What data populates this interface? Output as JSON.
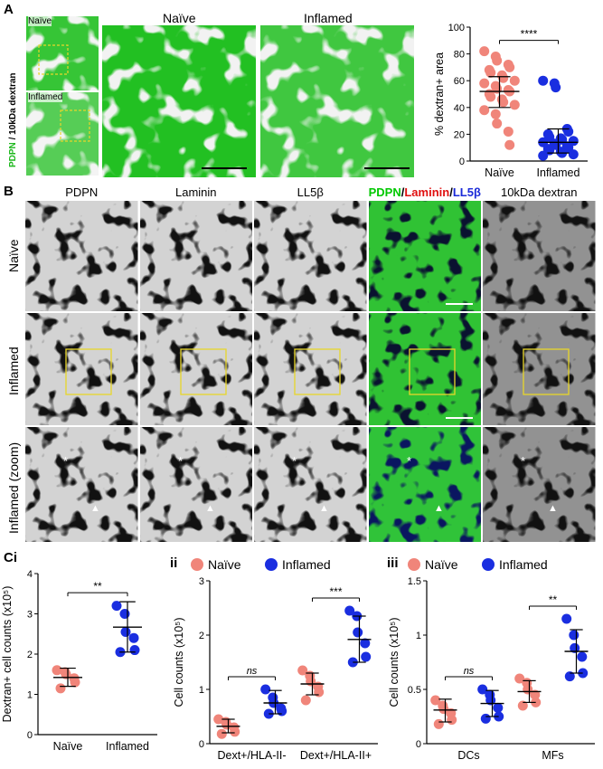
{
  "panels": {
    "a_letter": "A",
    "b_letter": "B",
    "ci_letter": "Ci",
    "ii_letter": "ii",
    "iii_letter": "iii"
  },
  "panel_a": {
    "thumb_top_label": "Naïve",
    "thumb_bottom_label": "Inflamed",
    "thumb_side_label_pdpn": "PDPN",
    "thumb_side_label_rest": " / 10kDa dextran",
    "image_naive_title": "Naïve",
    "image_inflamed_title": "Inflamed"
  },
  "panel_b": {
    "columns": [
      "PDPN",
      "Laminin",
      "LL5β",
      "",
      "10kDa dextran"
    ],
    "merge_parts": [
      {
        "text": "PDPN",
        "color": "#00c800"
      },
      {
        "text": "/",
        "color": "#000000"
      },
      {
        "text": "Laminin",
        "color": "#e01010"
      },
      {
        "text": "/",
        "color": "#000000"
      },
      {
        "text": "LL5β",
        "color": "#1a2ad8"
      }
    ],
    "rows": [
      "Naïve",
      "Inflamed",
      "Inflamed (zoom)"
    ]
  },
  "colors": {
    "naive": "#f0857a",
    "inflamed": "#1a2ee0",
    "pdpn_green": "#22c022",
    "box_yellow": "#e8d62a"
  },
  "chart_data": [
    {
      "id": "A",
      "type": "scatter",
      "ylabel": "% dextran+ area",
      "categories": [
        "Naïve",
        "Inflamed"
      ],
      "ylim": [
        0,
        100
      ],
      "yticks": [
        0,
        20,
        40,
        60,
        80,
        100
      ],
      "significance": [
        "****"
      ],
      "series": [
        {
          "name": "Naïve",
          "mean": 52,
          "sd_low": 40,
          "sd_high": 63,
          "values": [
            82,
            78,
            75,
            72,
            70,
            68,
            66,
            64,
            62,
            60,
            58,
            56,
            54,
            53,
            52,
            50,
            48,
            46,
            44,
            42,
            38,
            35,
            28,
            22,
            12
          ]
        },
        {
          "name": "Inflamed",
          "mean": 14,
          "sd_low": 6,
          "sd_high": 24,
          "values": [
            60,
            58,
            55,
            24,
            22,
            20,
            18,
            17,
            16,
            15,
            14,
            13,
            12,
            11,
            10,
            9,
            8,
            7,
            6,
            5,
            4
          ]
        }
      ]
    },
    {
      "id": "Ci",
      "type": "scatter",
      "ylabel": "Dextran+ cell counts (x10⁵)",
      "categories": [
        "Naïve",
        "Inflamed"
      ],
      "ylim": [
        0,
        4
      ],
      "yticks": [
        0,
        1,
        2,
        3,
        4
      ],
      "significance": [
        "**"
      ],
      "series": [
        {
          "name": "Naïve",
          "mean": 1.42,
          "sd_low": 1.2,
          "sd_high": 1.65,
          "values": [
            1.6,
            1.55,
            1.5,
            1.4,
            1.3,
            1.15
          ]
        },
        {
          "name": "Inflamed",
          "mean": 2.67,
          "sd_low": 2.05,
          "sd_high": 3.3,
          "values": [
            3.2,
            3.0,
            2.55,
            2.4,
            2.1,
            2.05
          ]
        }
      ]
    },
    {
      "id": "ii",
      "type": "scatter",
      "ylabel": "Cell counts (x10⁵)",
      "categories": [
        "Dext+/HLA-II-",
        "Dext+/HLA-II+"
      ],
      "legend": [
        "Naïve",
        "Inflamed"
      ],
      "ylim": [
        0,
        3
      ],
      "yticks": [
        0,
        1,
        2,
        3
      ],
      "significance": [
        "ns",
        "***"
      ],
      "series": [
        {
          "name": "Naïve",
          "group_means": [
            0.32,
            1.1
          ],
          "group_sd": [
            [
              0.2,
              0.45
            ],
            [
              0.9,
              1.3
            ]
          ],
          "values": [
            [
              0.45,
              0.4,
              0.35,
              0.3,
              0.22,
              0.18
            ],
            [
              1.35,
              1.25,
              1.15,
              1.05,
              0.95,
              0.8
            ]
          ]
        },
        {
          "name": "Inflamed",
          "group_means": [
            0.75,
            1.92
          ],
          "group_sd": [
            [
              0.55,
              0.98
            ],
            [
              1.5,
              2.35
            ]
          ],
          "values": [
            [
              1.0,
              0.85,
              0.75,
              0.65,
              0.6,
              0.55
            ],
            [
              2.45,
              2.35,
              2.05,
              1.85,
              1.6,
              1.5
            ]
          ]
        }
      ]
    },
    {
      "id": "iii",
      "type": "scatter",
      "ylabel": "Cell counts (x10⁵)",
      "categories": [
        "DCs",
        "MFs"
      ],
      "legend": [
        "Naïve",
        "Inflamed"
      ],
      "ylim": [
        0,
        1.5
      ],
      "yticks": [
        0,
        0.5,
        1,
        1.5
      ],
      "yticklabels": [
        "0",
        "0.5",
        "1",
        "1.5"
      ],
      "significance": [
        "ns",
        "**"
      ],
      "series": [
        {
          "name": "Naïve",
          "group_means": [
            0.31,
            0.48
          ],
          "group_sd": [
            [
              0.2,
              0.41
            ],
            [
              0.38,
              0.58
            ]
          ],
          "values": [
            [
              0.4,
              0.35,
              0.32,
              0.28,
              0.22,
              0.18
            ],
            [
              0.6,
              0.56,
              0.5,
              0.45,
              0.38,
              0.35
            ]
          ]
        },
        {
          "name": "Inflamed",
          "group_means": [
            0.37,
            0.85
          ],
          "group_sd": [
            [
              0.25,
              0.49
            ],
            [
              0.65,
              1.05
            ]
          ],
          "values": [
            [
              0.5,
              0.45,
              0.4,
              0.33,
              0.25,
              0.23
            ],
            [
              1.15,
              1.0,
              0.88,
              0.8,
              0.65,
              0.62
            ]
          ]
        }
      ]
    }
  ]
}
